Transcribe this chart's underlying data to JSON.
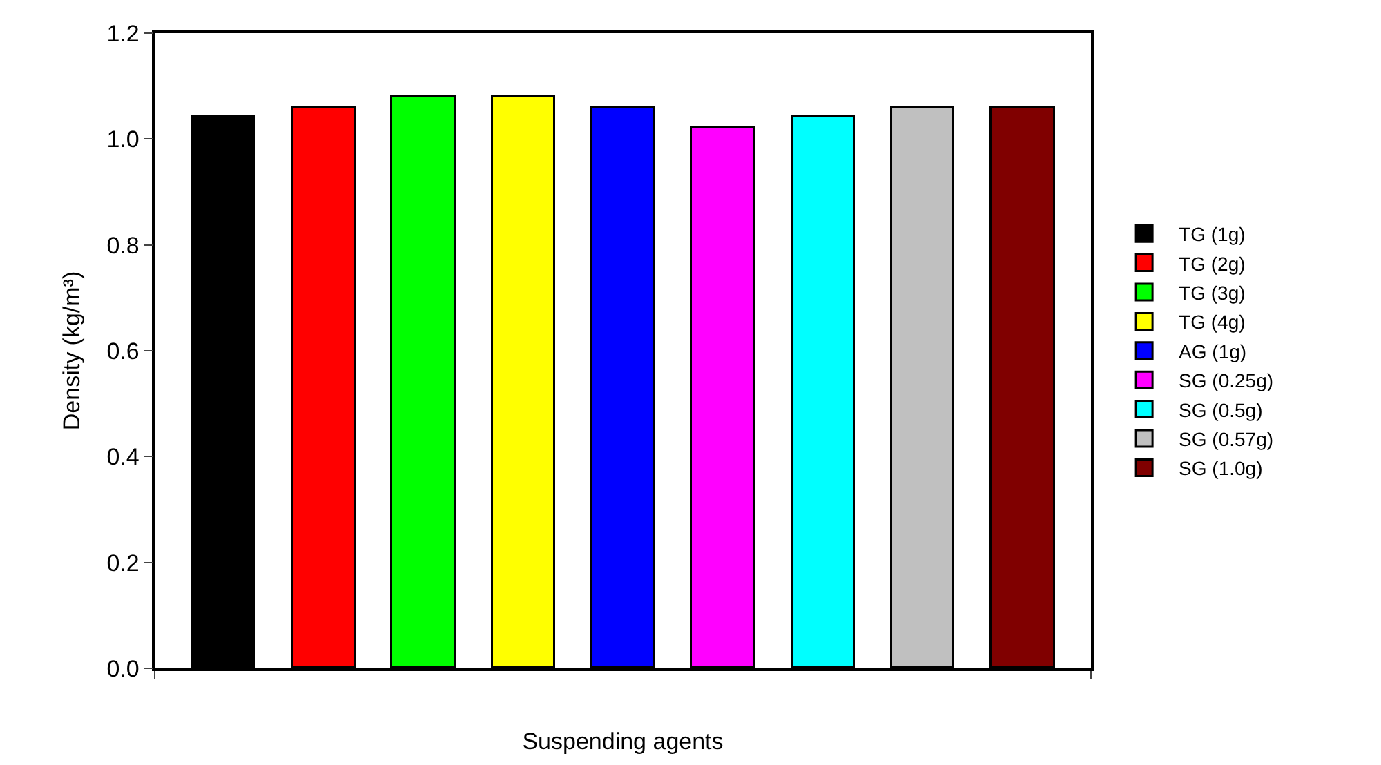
{
  "chart_data": {
    "type": "bar",
    "xlabel": "Suspending agents",
    "ylabel": "Density (kg/m³)",
    "categories": [
      null,
      null,
      null,
      null,
      null,
      null,
      null,
      null,
      null
    ],
    "series": [
      {
        "name": "TG (1g)",
        "color": "#000000",
        "values": [
          1.04,
          null,
          null,
          null,
          null,
          null,
          null,
          null,
          null
        ]
      },
      {
        "name": "TG (2g)",
        "color": "#ff0000",
        "values": [
          null,
          1.06,
          null,
          null,
          null,
          null,
          null,
          null,
          null
        ]
      },
      {
        "name": "TG (3g)",
        "color": "#00ff00",
        "values": [
          null,
          null,
          1.08,
          null,
          null,
          null,
          null,
          null,
          null
        ]
      },
      {
        "name": "TG (4g)",
        "color": "#ffff00",
        "values": [
          null,
          null,
          null,
          1.08,
          null,
          null,
          null,
          null,
          null
        ]
      },
      {
        "name": "AG (1g)",
        "color": "#0000ff",
        "values": [
          null,
          null,
          null,
          null,
          1.06,
          null,
          null,
          null,
          null
        ]
      },
      {
        "name": "SG (0.25g)",
        "color": "#ff00ff",
        "values": [
          null,
          null,
          null,
          null,
          null,
          1.02,
          null,
          null,
          null
        ]
      },
      {
        "name": "SG (0.5g)",
        "color": "#00ffff",
        "values": [
          null,
          null,
          null,
          null,
          null,
          null,
          1.04,
          null,
          null
        ]
      },
      {
        "name": "SG (0.57g)",
        "color": "#c0c0c0",
        "values": [
          null,
          null,
          null,
          null,
          null,
          null,
          null,
          1.06,
          null
        ]
      },
      {
        "name": "SG (1.0g)",
        "color": "#800000",
        "values": [
          null,
          null,
          null,
          null,
          null,
          null,
          null,
          null,
          1.06
        ]
      }
    ],
    "ylim": [
      0,
      1.2
    ],
    "yticks": [
      {
        "value": 0,
        "label": "0.0"
      },
      {
        "value": 0.2,
        "label": "0.2"
      },
      {
        "value": 0.4,
        "label": "0.4"
      },
      {
        "value": 0.6,
        "label": "0.6"
      },
      {
        "value": 0.8,
        "label": "0.8"
      },
      {
        "value": 1.0,
        "label": "1.0"
      },
      {
        "value": 1.2,
        "label": "1.2"
      }
    ],
    "tick_labels": "y",
    "legend": "right"
  }
}
